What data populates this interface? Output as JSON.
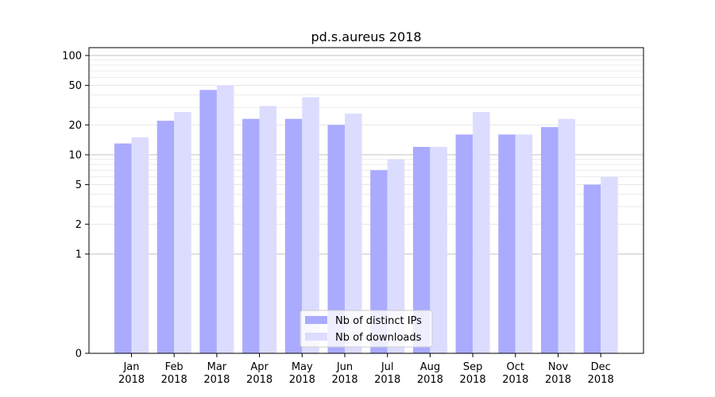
{
  "chart_data": {
    "type": "bar",
    "title": "pd.s.aureus 2018",
    "xlabel": "",
    "ylabel": "",
    "y_scale": "symlog",
    "ylim": [
      0,
      120
    ],
    "y_ticks": [
      0,
      1,
      2,
      5,
      10,
      20,
      50,
      100
    ],
    "y_tick_labels": [
      "0",
      "1",
      "2",
      "5",
      "10",
      "20",
      "50",
      "100"
    ],
    "categories": [
      "Jan\n2018",
      "Feb\n2018",
      "Mar\n2018",
      "Apr\n2018",
      "May\n2018",
      "Jun\n2018",
      "Jul\n2018",
      "Aug\n2018",
      "Sep\n2018",
      "Oct\n2018",
      "Nov\n2018",
      "Dec\n2018"
    ],
    "series": [
      {
        "name": "Nb of distinct IPs",
        "color": "#aaaaff",
        "values": [
          13,
          22,
          45,
          23,
          23,
          20,
          7,
          12,
          16,
          16,
          19,
          5
        ]
      },
      {
        "name": "Nb of downloads",
        "color": "#dcdcff",
        "values": [
          15,
          27,
          50,
          31,
          38,
          26,
          9,
          12,
          27,
          16,
          23,
          6
        ]
      }
    ],
    "legend_position": "bottom-center",
    "grid": true
  }
}
